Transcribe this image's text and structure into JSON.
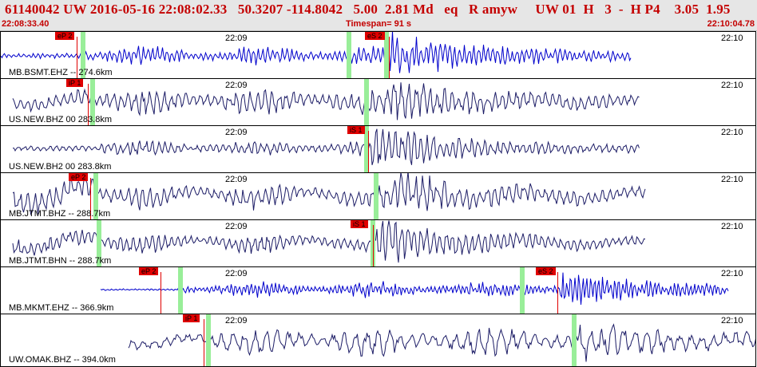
{
  "header": {
    "title": "61140042 UW 2016-05-16 22:08:02.33   50.3207 -114.8042   5.00  2.81 Md   eq   R amyw     UW 01  H   3  -  H P4    3.05  1.95",
    "time_start": "22:08:33.40",
    "timespan": "Timespan=  91 s",
    "time_end": "22:10:04.78"
  },
  "colors": {
    "header_text": "#c40000",
    "trace_blue": "#0000cc",
    "trace_navy": "#1c1c66",
    "pick_red": "#e00000",
    "window_green": "#99ee99"
  },
  "tick_labels": {
    "t1": "22:09",
    "t2": "22:10"
  },
  "channels": [
    {
      "label": "MB.BSMT.EHZ -- 274.6km",
      "color": "blue",
      "picks": [
        "eP 2",
        "eS 2"
      ]
    },
    {
      "label": "US.NEW.BHZ 00 283.8km",
      "color": "navy",
      "picks": [
        "iP 1"
      ]
    },
    {
      "label": "US.NEW.BH2 00 283.8km",
      "color": "navy",
      "picks": [
        "iS 1"
      ]
    },
    {
      "label": "MB.JTMT.BHZ -- 288.7km",
      "color": "navy",
      "picks": [
        "eP 2"
      ]
    },
    {
      "label": "MB.JTMT.BHN -- 288.7km",
      "color": "navy",
      "picks": [
        "iS 1"
      ]
    },
    {
      "label": "MB.MKMT.EHZ -- 366.9km",
      "color": "blue",
      "picks": [
        "eP 2",
        "eS 2"
      ]
    },
    {
      "label": "UW.OMAK.BHZ -- 394.0km",
      "color": "navy",
      "picks": [
        "iP 1"
      ]
    }
  ]
}
